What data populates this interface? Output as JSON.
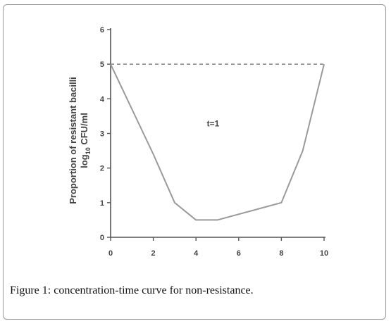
{
  "caption": {
    "label": "Figure 1",
    "text": ": concentration-time curve for non-resistance."
  },
  "chart_data": {
    "type": "line",
    "title": "",
    "xlabel": "",
    "ylabel_line1": "Proportion of resistant bacilli",
    "ylabel_line2": "log",
    "ylabel_sub": "10",
    "ylabel_line2_rest": " CFU/ml",
    "xlim": [
      0,
      10
    ],
    "ylim": [
      0,
      6
    ],
    "xticks": [
      0,
      2,
      4,
      6,
      8,
      10
    ],
    "yticks": [
      0,
      1,
      2,
      3,
      4,
      5,
      6
    ],
    "grid": false,
    "series": [
      {
        "color": "#9a9a9a",
        "x": [
          0,
          2,
          3,
          4,
          5,
          8,
          9,
          10
        ],
        "y": [
          5,
          2.4,
          1.0,
          0.5,
          0.5,
          1.0,
          2.5,
          5
        ]
      }
    ],
    "reference_line": {
      "y": 5,
      "style": "dashed",
      "color": "#8a8a8a"
    },
    "annotations": [
      {
        "text": "t=1",
        "x": 4.8,
        "y": 3.2
      }
    ]
  }
}
